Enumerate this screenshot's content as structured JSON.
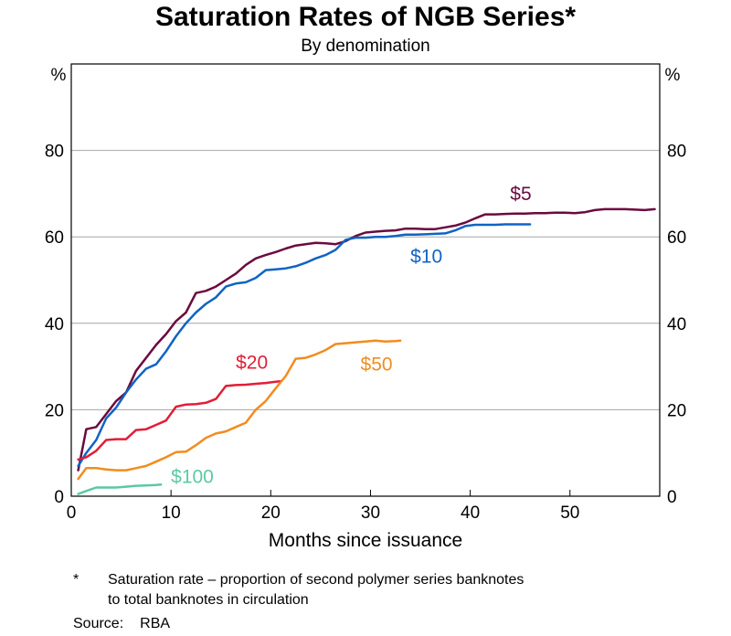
{
  "chart_data": {
    "type": "line",
    "title": "Saturation Rates of NGB Series*",
    "subtitle": "By denomination",
    "xlabel": "Months since issuance",
    "y_unit_label": "%",
    "xlim": [
      0,
      59
    ],
    "ylim": [
      0,
      100
    ],
    "xticks": [
      0,
      10,
      20,
      30,
      40,
      50
    ],
    "yticks": [
      0,
      20,
      40,
      60,
      80
    ],
    "grid": true,
    "series": [
      {
        "name": "$5",
        "color": "#6b0a3e",
        "label_at": [
          44,
          70
        ],
        "points": [
          [
            0.7,
            6
          ],
          [
            1.5,
            15.5
          ],
          [
            2.5,
            16
          ],
          [
            3.5,
            19
          ],
          [
            4.5,
            22
          ],
          [
            5.5,
            24
          ],
          [
            6.5,
            29
          ],
          [
            7.5,
            32
          ],
          [
            8.5,
            35
          ],
          [
            9.5,
            37.5
          ],
          [
            10.5,
            40.5
          ],
          [
            11.5,
            42.5
          ],
          [
            12.5,
            47
          ],
          [
            13.5,
            47.5
          ],
          [
            14.5,
            48.5
          ],
          [
            15.5,
            50
          ],
          [
            16.5,
            51.5
          ],
          [
            17.5,
            53.5
          ],
          [
            18.5,
            55
          ],
          [
            19.5,
            55.8
          ],
          [
            20.5,
            56.5
          ],
          [
            21.5,
            57.3
          ],
          [
            22.5,
            58
          ],
          [
            23.5,
            58.3
          ],
          [
            24.5,
            58.6
          ],
          [
            25.5,
            58.5
          ],
          [
            26.5,
            58.3
          ],
          [
            27.5,
            59
          ],
          [
            28.5,
            60.2
          ],
          [
            29.5,
            61
          ],
          [
            30.5,
            61.2
          ],
          [
            31.5,
            61.4
          ],
          [
            32.5,
            61.5
          ],
          [
            33.5,
            61.9
          ],
          [
            34.5,
            61.9
          ],
          [
            35.5,
            61.8
          ],
          [
            36.5,
            61.8
          ],
          [
            37.5,
            62.2
          ],
          [
            38.5,
            62.6
          ],
          [
            39.5,
            63.3
          ],
          [
            40.5,
            64.3
          ],
          [
            41.5,
            65.2
          ],
          [
            42.5,
            65.2
          ],
          [
            43.5,
            65.3
          ],
          [
            44.5,
            65.4
          ],
          [
            45.5,
            65.4
          ],
          [
            46.5,
            65.5
          ],
          [
            47.5,
            65.5
          ],
          [
            48.5,
            65.6
          ],
          [
            49.5,
            65.6
          ],
          [
            50.5,
            65.5
          ],
          [
            51.5,
            65.7
          ],
          [
            52.5,
            66.2
          ],
          [
            53.5,
            66.4
          ],
          [
            54.5,
            66.4
          ],
          [
            55.5,
            66.4
          ],
          [
            56.5,
            66.3
          ],
          [
            57.5,
            66.2
          ],
          [
            58.5,
            66.4
          ]
        ]
      },
      {
        "name": "$10",
        "color": "#0f64c3",
        "label_at": [
          34,
          55.5
        ],
        "points": [
          [
            0.7,
            7
          ],
          [
            1.5,
            10
          ],
          [
            2.5,
            13
          ],
          [
            3.5,
            18
          ],
          [
            4.5,
            20.5
          ],
          [
            5.5,
            24
          ],
          [
            6.5,
            27
          ],
          [
            7.5,
            29.5
          ],
          [
            8.5,
            30.5
          ],
          [
            9.5,
            33.5
          ],
          [
            10.5,
            37
          ],
          [
            11.5,
            40
          ],
          [
            12.5,
            42.5
          ],
          [
            13.5,
            44.5
          ],
          [
            14.5,
            46
          ],
          [
            15.5,
            48.5
          ],
          [
            16.5,
            49.2
          ],
          [
            17.5,
            49.5
          ],
          [
            18.5,
            50.5
          ],
          [
            19.5,
            52.3
          ],
          [
            20.5,
            52.5
          ],
          [
            21.5,
            52.7
          ],
          [
            22.5,
            53.2
          ],
          [
            23.5,
            54
          ],
          [
            24.5,
            55
          ],
          [
            25.5,
            55.8
          ],
          [
            26.5,
            57
          ],
          [
            27.5,
            59.3
          ],
          [
            28.5,
            59.8
          ],
          [
            29.5,
            59.8
          ],
          [
            30.5,
            60
          ],
          [
            31.5,
            60
          ],
          [
            32.5,
            60.2
          ],
          [
            33.5,
            60.5
          ],
          [
            34.5,
            60.5
          ],
          [
            35.5,
            60.6
          ],
          [
            36.5,
            60.7
          ],
          [
            37.5,
            60.8
          ],
          [
            38.5,
            61.5
          ],
          [
            39.5,
            62.5
          ],
          [
            40.5,
            62.8
          ],
          [
            41.5,
            62.8
          ],
          [
            42.5,
            62.8
          ],
          [
            43.5,
            62.9
          ],
          [
            44.5,
            62.9
          ],
          [
            45.5,
            62.9
          ],
          [
            46,
            62.9
          ]
        ]
      },
      {
        "name": "$20",
        "color": "#e01e37",
        "label_at": [
          16.5,
          31
        ],
        "points": [
          [
            0.7,
            8.5
          ],
          [
            1.5,
            9
          ],
          [
            2.5,
            10.5
          ],
          [
            3.5,
            13
          ],
          [
            4.5,
            13.2
          ],
          [
            5.5,
            13.2
          ],
          [
            6.5,
            15.3
          ],
          [
            7.5,
            15.5
          ],
          [
            8.5,
            16.5
          ],
          [
            9.5,
            17.5
          ],
          [
            10.5,
            20.7
          ],
          [
            11.5,
            21.2
          ],
          [
            12.5,
            21.3
          ],
          [
            13.5,
            21.6
          ],
          [
            14.5,
            22.5
          ],
          [
            15.5,
            25.5
          ],
          [
            16.5,
            25.7
          ],
          [
            17.5,
            25.8
          ],
          [
            18.5,
            26
          ],
          [
            19.5,
            26.2
          ],
          [
            20.5,
            26.5
          ],
          [
            21,
            26.6
          ]
        ]
      },
      {
        "name": "$50",
        "color": "#f28c1e",
        "label_at": [
          29,
          30.5
        ],
        "points": [
          [
            0.7,
            4
          ],
          [
            1.5,
            6.5
          ],
          [
            2.5,
            6.5
          ],
          [
            3.5,
            6.2
          ],
          [
            4.5,
            6
          ],
          [
            5.5,
            6
          ],
          [
            6.5,
            6.5
          ],
          [
            7.5,
            7
          ],
          [
            8.5,
            8
          ],
          [
            9.5,
            9
          ],
          [
            10.5,
            10.2
          ],
          [
            11.5,
            10.3
          ],
          [
            12.5,
            11.8
          ],
          [
            13.5,
            13.5
          ],
          [
            14.5,
            14.5
          ],
          [
            15.5,
            15
          ],
          [
            16.5,
            16
          ],
          [
            17.5,
            17
          ],
          [
            18.5,
            20
          ],
          [
            19.5,
            22
          ],
          [
            20.5,
            25
          ],
          [
            21.5,
            27.8
          ],
          [
            22.5,
            31.8
          ],
          [
            23.5,
            32
          ],
          [
            24.5,
            32.8
          ],
          [
            25.5,
            33.8
          ],
          [
            26.5,
            35.2
          ],
          [
            27.5,
            35.4
          ],
          [
            28.5,
            35.6
          ],
          [
            29.5,
            35.8
          ],
          [
            30.5,
            36
          ],
          [
            31.5,
            35.8
          ],
          [
            32.5,
            35.9
          ],
          [
            33,
            36
          ]
        ]
      },
      {
        "name": "$100",
        "color": "#5dc8a5",
        "label_at": [
          10,
          4.5
        ],
        "points": [
          [
            0.7,
            0.5
          ],
          [
            1.5,
            1.2
          ],
          [
            2.5,
            2
          ],
          [
            3.5,
            2
          ],
          [
            4.5,
            2
          ],
          [
            5.5,
            2.2
          ],
          [
            6.5,
            2.4
          ],
          [
            7.5,
            2.5
          ],
          [
            8.5,
            2.6
          ],
          [
            9,
            2.7
          ]
        ]
      }
    ]
  },
  "footnote": {
    "mark": "*",
    "text_line1": "Saturation rate – proportion of second polymer series banknotes",
    "text_line2": "to total banknotes in circulation"
  },
  "source": {
    "label": "Source:",
    "value": "RBA"
  }
}
